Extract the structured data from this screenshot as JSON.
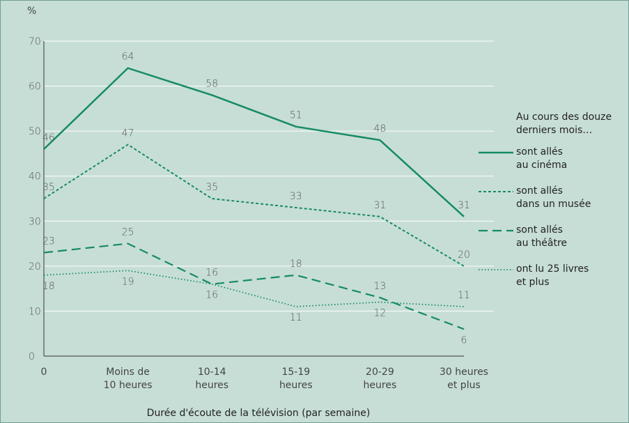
{
  "chart_data": {
    "type": "line",
    "y_axis_label": "%",
    "x_axis_label": "Durée d'écoute de la télévision (par semaine)",
    "categories": [
      "0",
      "Moins de\n10 heures",
      "10-14\nheures",
      "15-19\nheures",
      "20-29\nheures",
      "30 heures\net plus"
    ],
    "ylim": [
      0,
      70
    ],
    "yticks": [
      0,
      10,
      20,
      30,
      40,
      50,
      60,
      70
    ],
    "grid": true,
    "legend_title": "Au cours des douze\nderniers mois…",
    "series": [
      {
        "name": "sont allés\nau cinéma",
        "color": "#158a66",
        "style": "solid",
        "values": [
          46,
          64,
          58,
          51,
          48,
          31
        ]
      },
      {
        "name": "sont allés\ndans un musée",
        "color": "#158a66",
        "style": "dashed-short",
        "values": [
          35,
          47,
          35,
          33,
          31,
          20
        ]
      },
      {
        "name": "sont allés\nau théâtre",
        "color": "#158a66",
        "style": "dashed-long",
        "values": [
          23,
          25,
          16,
          18,
          13,
          6
        ]
      },
      {
        "name": "ont lu 25 livres\net plus",
        "color": "#158a66",
        "style": "dotted",
        "values": [
          18,
          19,
          16,
          11,
          12,
          11
        ]
      }
    ]
  }
}
